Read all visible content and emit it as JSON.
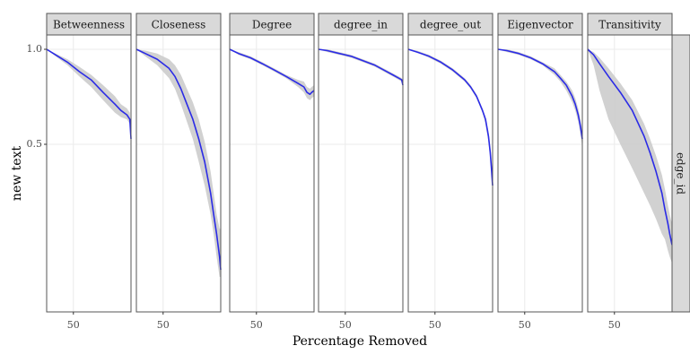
{
  "chart_data": {
    "type": "line",
    "xlabel": "Percentage Removed",
    "ylabel": "new text",
    "row_strip": "edge_id",
    "y_scale": "log",
    "ylim": [
      0.18,
      1.05
    ],
    "xlim": [
      45.5,
      59.7
    ],
    "x_ticks": [
      50
    ],
    "x_tick_labels": [
      "50"
    ],
    "y_ticks": [
      1.0,
      0.5
    ],
    "y_tick_labels": [
      "1.0",
      "0.5"
    ],
    "grid": true,
    "colors": {
      "line": "#2b2be6",
      "ribbon": "#cccccc",
      "strip_fill": "#d9d9d9",
      "panel_border": "#555555",
      "grid": "#ebebeb"
    },
    "panels": [
      {
        "name": "Betweenness",
        "x": [
          45.5,
          47,
          49,
          51,
          53,
          55,
          57,
          58,
          59,
          59.5,
          59.7
        ],
        "y": [
          1.0,
          0.96,
          0.91,
          0.85,
          0.8,
          0.73,
          0.67,
          0.64,
          0.62,
          0.6,
          0.52
        ],
        "ymin": [
          1.0,
          0.95,
          0.89,
          0.82,
          0.76,
          0.69,
          0.63,
          0.61,
          0.6,
          0.58,
          0.51
        ],
        "ymax": [
          1.0,
          0.97,
          0.93,
          0.88,
          0.83,
          0.77,
          0.71,
          0.67,
          0.65,
          0.63,
          0.54
        ]
      },
      {
        "name": "Closeness",
        "x": [
          45.5,
          47,
          49,
          51,
          52,
          53,
          54,
          55,
          56,
          57,
          58,
          58.5,
          59,
          59.5,
          59.7
        ],
        "y": [
          1.0,
          0.97,
          0.93,
          0.87,
          0.82,
          0.75,
          0.67,
          0.6,
          0.52,
          0.44,
          0.35,
          0.3,
          0.26,
          0.22,
          0.2
        ],
        "ymin": [
          1.0,
          0.95,
          0.89,
          0.81,
          0.75,
          0.67,
          0.59,
          0.52,
          0.44,
          0.37,
          0.3,
          0.26,
          0.22,
          0.19,
          0.19
        ],
        "ymax": [
          1.0,
          0.99,
          0.97,
          0.93,
          0.89,
          0.83,
          0.75,
          0.68,
          0.6,
          0.51,
          0.41,
          0.35,
          0.3,
          0.27,
          0.27
        ]
      },
      {
        "name": "Degree",
        "x": [
          45.5,
          47,
          49,
          51,
          53,
          55,
          57,
          58,
          58.5,
          59,
          59.3,
          59.7
        ],
        "y": [
          1.0,
          0.97,
          0.94,
          0.9,
          0.86,
          0.82,
          0.78,
          0.76,
          0.73,
          0.72,
          0.73,
          0.74
        ],
        "ymin": [
          1.0,
          0.96,
          0.93,
          0.89,
          0.85,
          0.81,
          0.76,
          0.73,
          0.7,
          0.69,
          0.7,
          0.71
        ],
        "ymax": [
          1.0,
          0.98,
          0.95,
          0.91,
          0.87,
          0.83,
          0.8,
          0.79,
          0.76,
          0.75,
          0.76,
          0.77
        ]
      },
      {
        "name": "degree_in",
        "x": [
          45.5,
          47,
          49,
          51,
          53,
          55,
          57,
          58,
          59,
          59.5,
          59.7
        ],
        "y": [
          1.0,
          0.99,
          0.97,
          0.95,
          0.92,
          0.89,
          0.85,
          0.83,
          0.81,
          0.8,
          0.77
        ],
        "ymin": [
          1.0,
          0.98,
          0.96,
          0.94,
          0.91,
          0.88,
          0.84,
          0.82,
          0.8,
          0.79,
          0.76
        ],
        "ymax": [
          1.0,
          1.0,
          0.98,
          0.96,
          0.93,
          0.9,
          0.86,
          0.84,
          0.82,
          0.81,
          0.78
        ]
      },
      {
        "name": "degree_out",
        "x": [
          45.5,
          47,
          49,
          51,
          53,
          55,
          56,
          57,
          58,
          58.5,
          59,
          59.3,
          59.5,
          59.7
        ],
        "y": [
          1.0,
          0.98,
          0.95,
          0.91,
          0.86,
          0.8,
          0.76,
          0.71,
          0.64,
          0.6,
          0.53,
          0.47,
          0.42,
          0.37
        ],
        "ymin": [
          1.0,
          0.98,
          0.94,
          0.9,
          0.85,
          0.79,
          0.75,
          0.7,
          0.63,
          0.58,
          0.51,
          0.45,
          0.4,
          0.36
        ],
        "ymax": [
          1.0,
          0.99,
          0.96,
          0.92,
          0.87,
          0.81,
          0.77,
          0.72,
          0.65,
          0.61,
          0.55,
          0.49,
          0.44,
          0.39
        ]
      },
      {
        "name": "Eigenvector",
        "x": [
          45.5,
          47,
          49,
          51,
          53,
          55,
          56,
          57,
          58,
          58.5,
          59,
          59.3,
          59.5,
          59.7
        ],
        "y": [
          1.0,
          0.99,
          0.97,
          0.94,
          0.9,
          0.85,
          0.81,
          0.77,
          0.71,
          0.67,
          0.62,
          0.58,
          0.55,
          0.52
        ],
        "ymin": [
          1.0,
          0.98,
          0.96,
          0.93,
          0.89,
          0.83,
          0.79,
          0.74,
          0.68,
          0.64,
          0.59,
          0.55,
          0.52,
          0.49
        ],
        "ymax": [
          1.0,
          1.0,
          0.98,
          0.95,
          0.91,
          0.87,
          0.83,
          0.79,
          0.74,
          0.7,
          0.65,
          0.61,
          0.58,
          0.55
        ]
      },
      {
        "name": "Transitivity",
        "x": [
          45.5,
          46.5,
          47.5,
          49,
          51,
          53,
          55,
          56,
          57,
          58,
          58.5,
          59,
          59.3,
          59.7
        ],
        "y": [
          1.0,
          0.96,
          0.9,
          0.82,
          0.73,
          0.64,
          0.53,
          0.47,
          0.41,
          0.35,
          0.31,
          0.28,
          0.26,
          0.24
        ],
        "ymin": [
          1.0,
          0.89,
          0.74,
          0.6,
          0.5,
          0.42,
          0.35,
          0.32,
          0.29,
          0.26,
          0.25,
          0.23,
          0.22,
          0.21
        ],
        "ymax": [
          1.0,
          0.98,
          0.94,
          0.87,
          0.78,
          0.69,
          0.58,
          0.52,
          0.46,
          0.4,
          0.36,
          0.32,
          0.3,
          0.28
        ]
      }
    ]
  }
}
